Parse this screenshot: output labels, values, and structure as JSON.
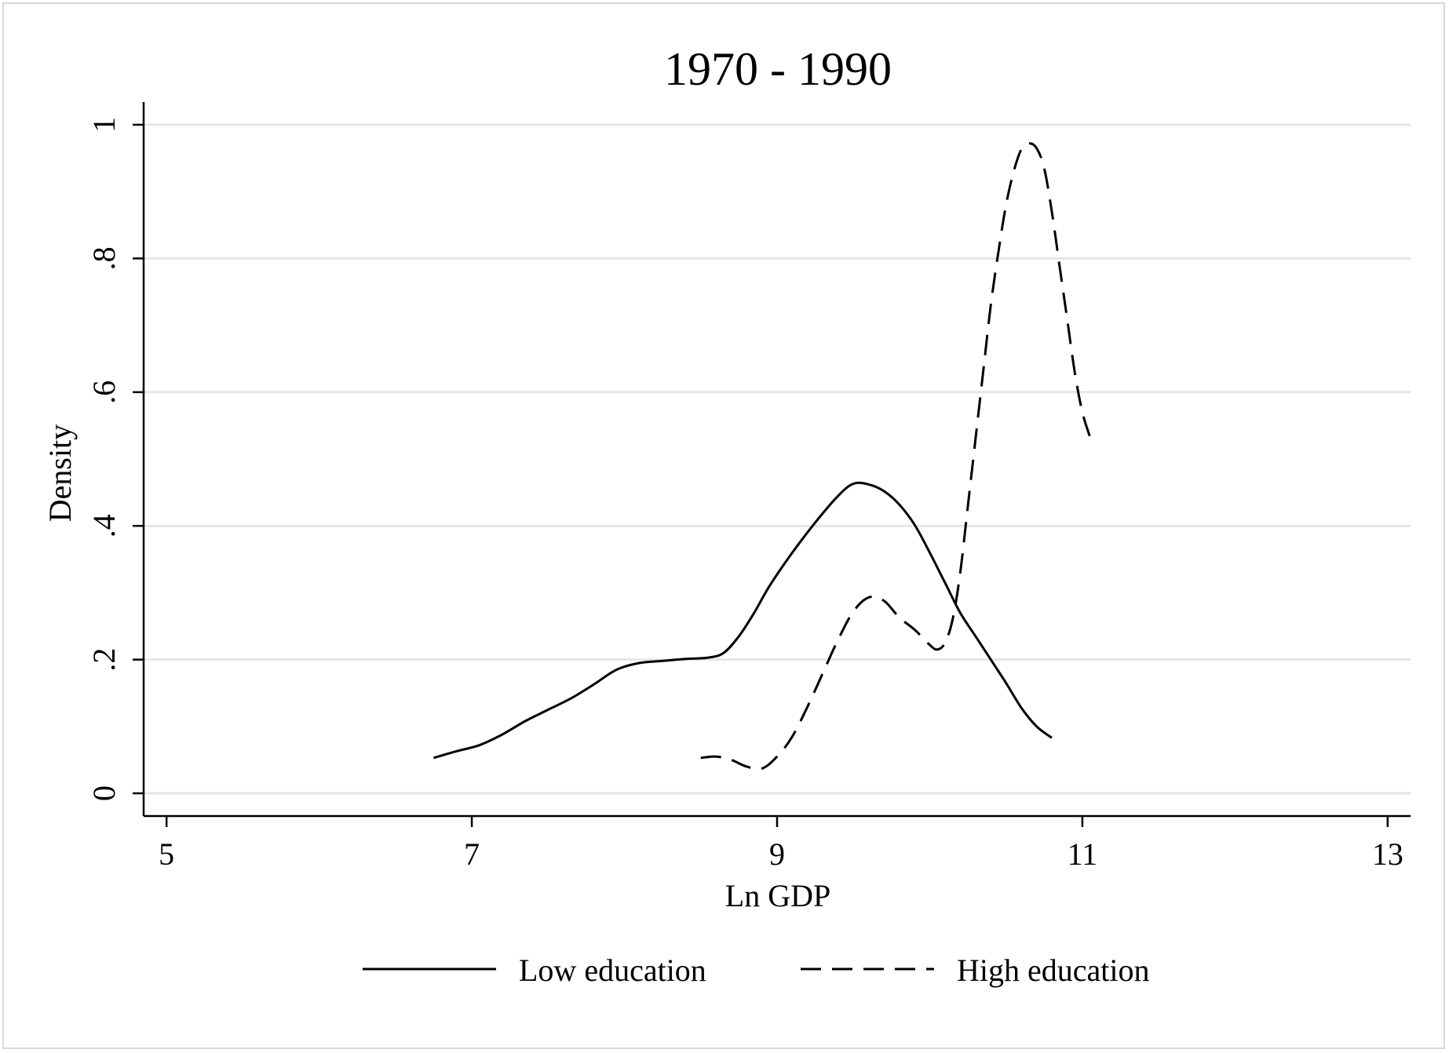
{
  "chart_data": {
    "type": "line",
    "title": "1970 - 1990",
    "xlabel": "Ln GDP",
    "ylabel": "Density",
    "xlim": [
      4.85,
      13.15
    ],
    "ylim": [
      -0.034,
      1.034
    ],
    "x_ticks": [
      5,
      7,
      9,
      11,
      13
    ],
    "x_tick_labels": [
      "5",
      "7",
      "9",
      "11",
      "13"
    ],
    "y_ticks": [
      0,
      0.2,
      0.4,
      0.6,
      0.8,
      1
    ],
    "y_tick_labels": [
      "0",
      ".2",
      ".4",
      ".6",
      ".8",
      "1"
    ],
    "grid": "horizontal",
    "legend_position": "bottom",
    "series": [
      {
        "name": "Low education",
        "style": "solid",
        "color": "#000000",
        "x": [
          6.75,
          6.9,
          7.05,
          7.2,
          7.35,
          7.5,
          7.65,
          7.8,
          7.95,
          8.1,
          8.25,
          8.4,
          8.55,
          8.65,
          8.75,
          8.85,
          8.95,
          9.1,
          9.25,
          9.4,
          9.5,
          9.6,
          9.7,
          9.8,
          9.9,
          10.0,
          10.1,
          10.2,
          10.3,
          10.4,
          10.5,
          10.6,
          10.7,
          10.8
        ],
        "y": [
          0.053,
          0.063,
          0.072,
          0.088,
          0.108,
          0.125,
          0.142,
          0.163,
          0.185,
          0.195,
          0.198,
          0.201,
          0.203,
          0.21,
          0.235,
          0.27,
          0.31,
          0.36,
          0.405,
          0.445,
          0.463,
          0.462,
          0.452,
          0.432,
          0.402,
          0.36,
          0.315,
          0.27,
          0.235,
          0.2,
          0.165,
          0.128,
          0.1,
          0.083
        ]
      },
      {
        "name": "High education",
        "style": "dashed",
        "color": "#000000",
        "x": [
          8.5,
          8.6,
          8.7,
          8.8,
          8.9,
          9.0,
          9.1,
          9.2,
          9.3,
          9.4,
          9.5,
          9.6,
          9.7,
          9.8,
          9.9,
          10.0,
          10.05,
          10.1,
          10.15,
          10.2,
          10.25,
          10.3,
          10.35,
          10.4,
          10.45,
          10.5,
          10.55,
          10.6,
          10.65,
          10.7,
          10.75,
          10.8,
          10.85,
          10.9,
          10.95,
          11.0,
          11.05
        ],
        "y": [
          0.053,
          0.055,
          0.05,
          0.04,
          0.037,
          0.055,
          0.085,
          0.13,
          0.18,
          0.23,
          0.272,
          0.293,
          0.288,
          0.263,
          0.245,
          0.222,
          0.215,
          0.225,
          0.26,
          0.33,
          0.43,
          0.53,
          0.63,
          0.73,
          0.81,
          0.88,
          0.93,
          0.963,
          0.972,
          0.965,
          0.935,
          0.87,
          0.79,
          0.71,
          0.63,
          0.57,
          0.533
        ]
      }
    ]
  }
}
